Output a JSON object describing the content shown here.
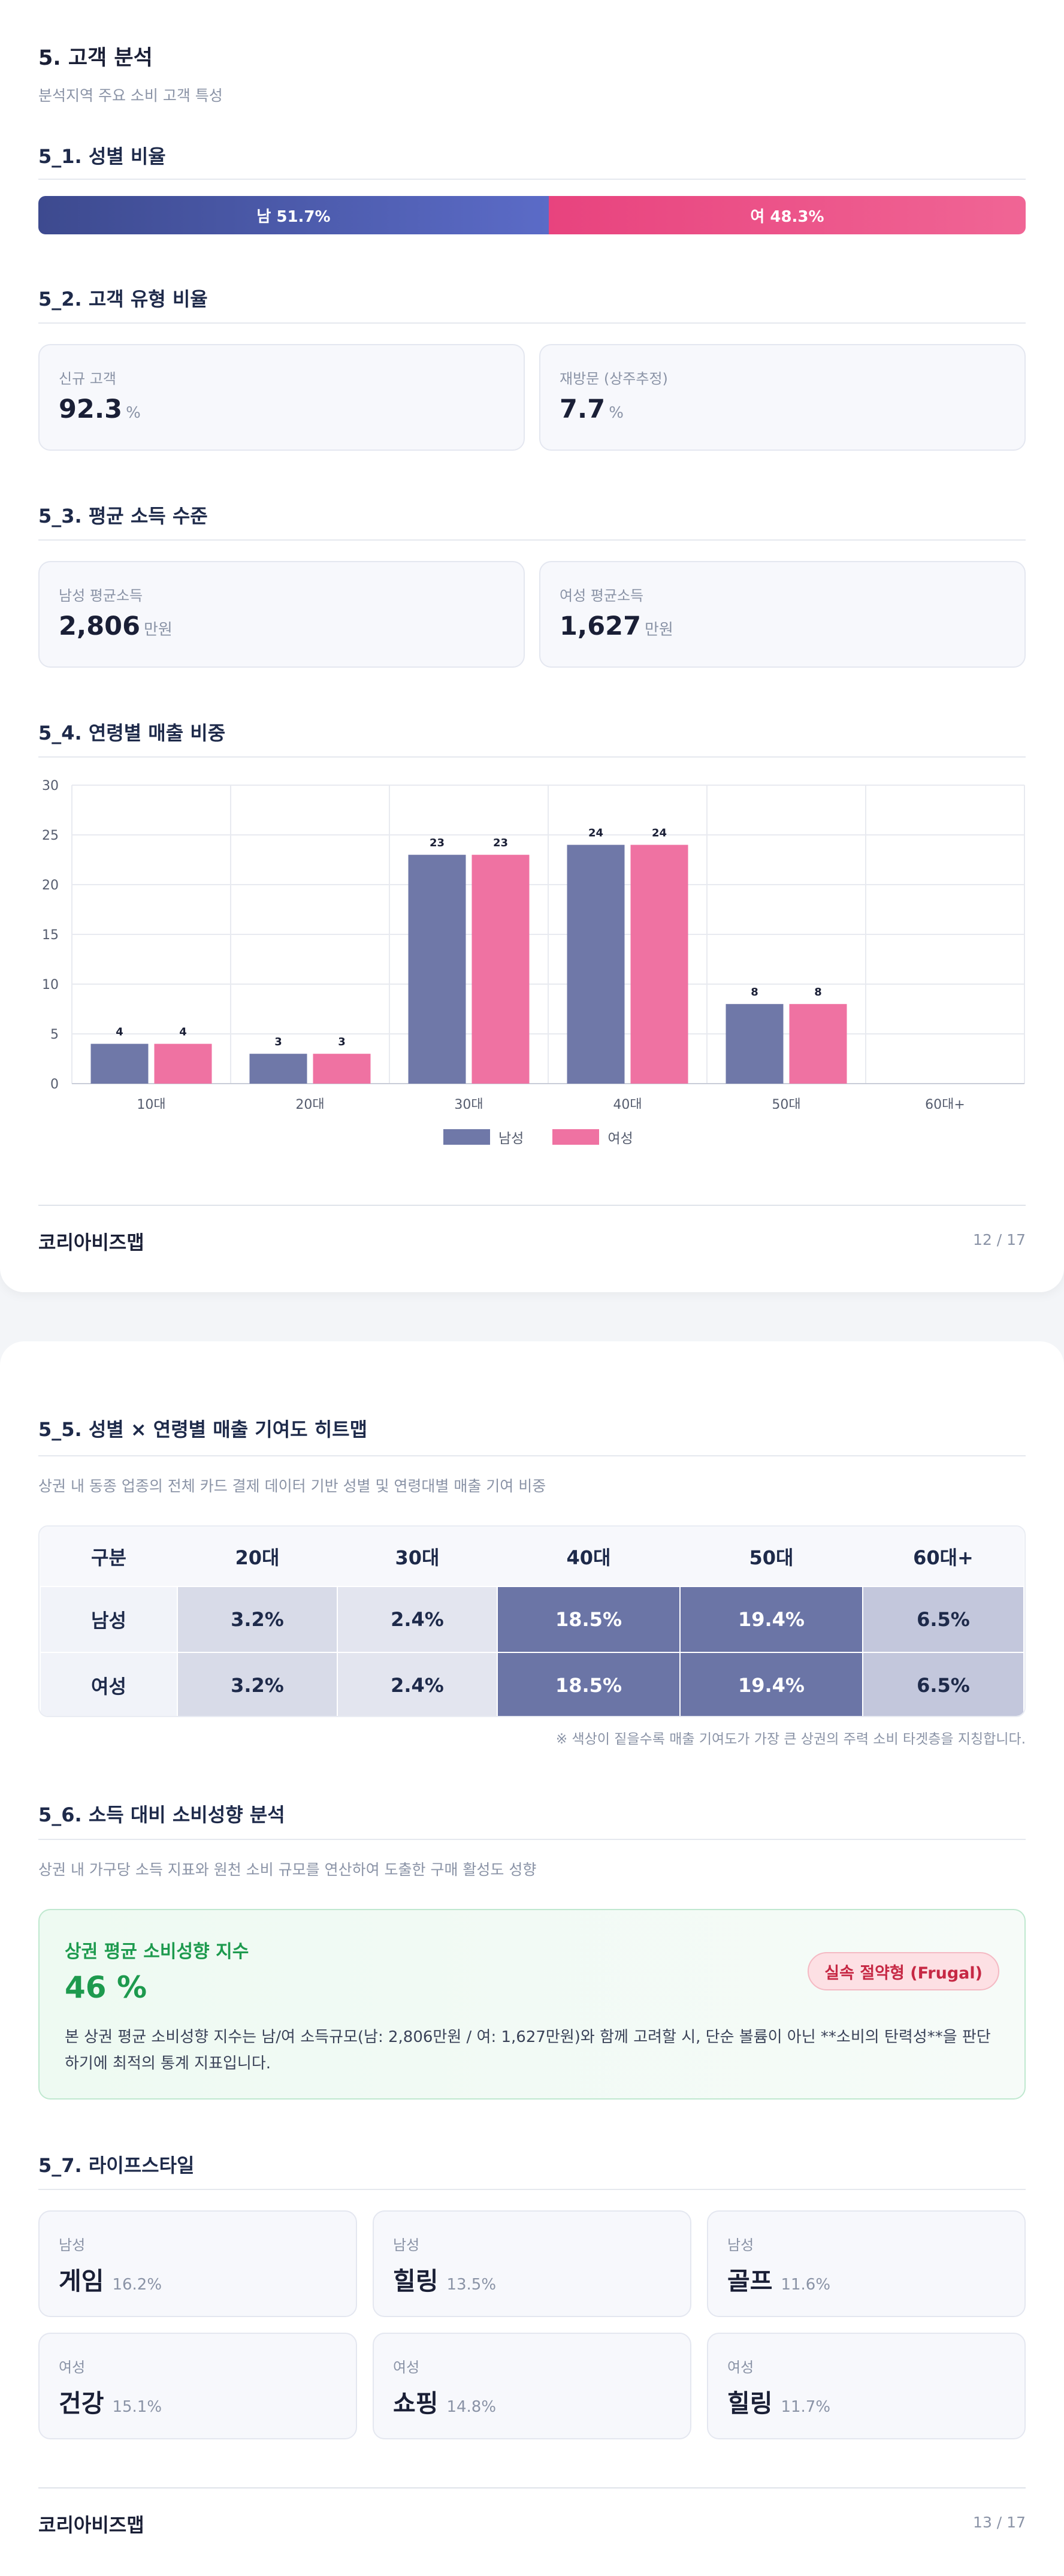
{
  "page1": {
    "section_title": "5. 고객 분석",
    "section_sub": "분석지역 주요 소비 고객 특성",
    "gender": {
      "title": "5_1. 성별 비율",
      "male_label": "남 51.7%",
      "female_label": "여 48.3%",
      "male_pct": 51.7,
      "female_pct": 48.3
    },
    "customer_type": {
      "title": "5_2. 고객 유형 비율",
      "new_label": "신규 고객",
      "new_value": "92.3",
      "revisit_label": "재방문 (상주추정)",
      "revisit_value": "7.7",
      "unit": "%"
    },
    "income": {
      "title": "5_3. 평균 소득 수준",
      "male_label": "남성 평균소득",
      "male_value": "2,806",
      "female_label": "여성 평균소득",
      "female_value": "1,627",
      "unit": "만원"
    },
    "age_chart_title": "5_4. 연령별 매출 비중",
    "footer_brand": "코리아비즈맵",
    "footer_page": "12 / 17"
  },
  "chart_data": {
    "type": "bar",
    "categories": [
      "10대",
      "20대",
      "30대",
      "40대",
      "50대",
      "60대+"
    ],
    "series": [
      {
        "name": "남성",
        "values": [
          4,
          3,
          23,
          24,
          8,
          null
        ],
        "labels": [
          "4",
          "3",
          "23",
          "24",
          "8",
          ""
        ],
        "color": "#6f78a8"
      },
      {
        "name": "여성",
        "values": [
          4,
          3,
          23,
          24,
          8,
          null
        ],
        "labels": [
          "4",
          "3",
          "23",
          "24",
          "8",
          ""
        ],
        "color": "#ef72a2"
      }
    ],
    "ylim": [
      0,
      30
    ],
    "yticks": [
      "0",
      "5",
      "10",
      "15",
      "20",
      "25",
      "30"
    ],
    "grid": true,
    "legend": "bottom-center"
  },
  "page2": {
    "heatmap": {
      "title": "5_5. 성별 × 연령별 매출 기여도 히트맵",
      "sub": "상권 내 동종 업종의 전체 카드 결제 데이터 기반 성별 및 연령대별 매출 기여 비중",
      "header": [
        "구분",
        "20대",
        "30대",
        "40대",
        "50대",
        "60대+"
      ],
      "rows": [
        {
          "label": "남성",
          "cells": [
            "3.2%",
            "2.4%",
            "18.5%",
            "19.4%",
            "6.5%"
          ]
        },
        {
          "label": "여성",
          "cells": [
            "3.2%",
            "2.4%",
            "18.5%",
            "19.4%",
            "6.5%"
          ]
        }
      ],
      "note": "※ 색상이 짙을수록 매출 기여도가 가장 큰 상권의 주력 소비 타겟층을 지칭합니다."
    },
    "consumption": {
      "title": "5_6. 소득 대비 소비성향 분석",
      "sub": "상권 내 가구당 소득 지표와 원천 소비 규모를 연산하여 도출한 구매 활성도 성향",
      "box_title": "상권 평균 소비성향 지수",
      "index": "46 %",
      "badge": "실속 절약형 (Frugal)",
      "desc": "본 상권 평균 소비성향 지수는 남/여 소득규모(남: 2,806만원 / 여: 1,627만원)와 함께 고려할 시, 단순 볼륨이 아닌 **소비의 탄력성**을 판단하기에 최적의 통계 지표입니다."
    },
    "lifestyle": {
      "title": "5_7. 라이프스타일",
      "cards": [
        {
          "gender": "남성",
          "name": "게임",
          "pct": "16.2%"
        },
        {
          "gender": "남성",
          "name": "힐링",
          "pct": "13.5%"
        },
        {
          "gender": "남성",
          "name": "골프",
          "pct": "11.6%"
        },
        {
          "gender": "여성",
          "name": "건강",
          "pct": "15.1%"
        },
        {
          "gender": "여성",
          "name": "쇼핑",
          "pct": "14.8%"
        },
        {
          "gender": "여성",
          "name": "힐링",
          "pct": "11.7%"
        }
      ]
    },
    "footer_brand": "코리아비즈맵",
    "footer_page": "13 / 17"
  }
}
